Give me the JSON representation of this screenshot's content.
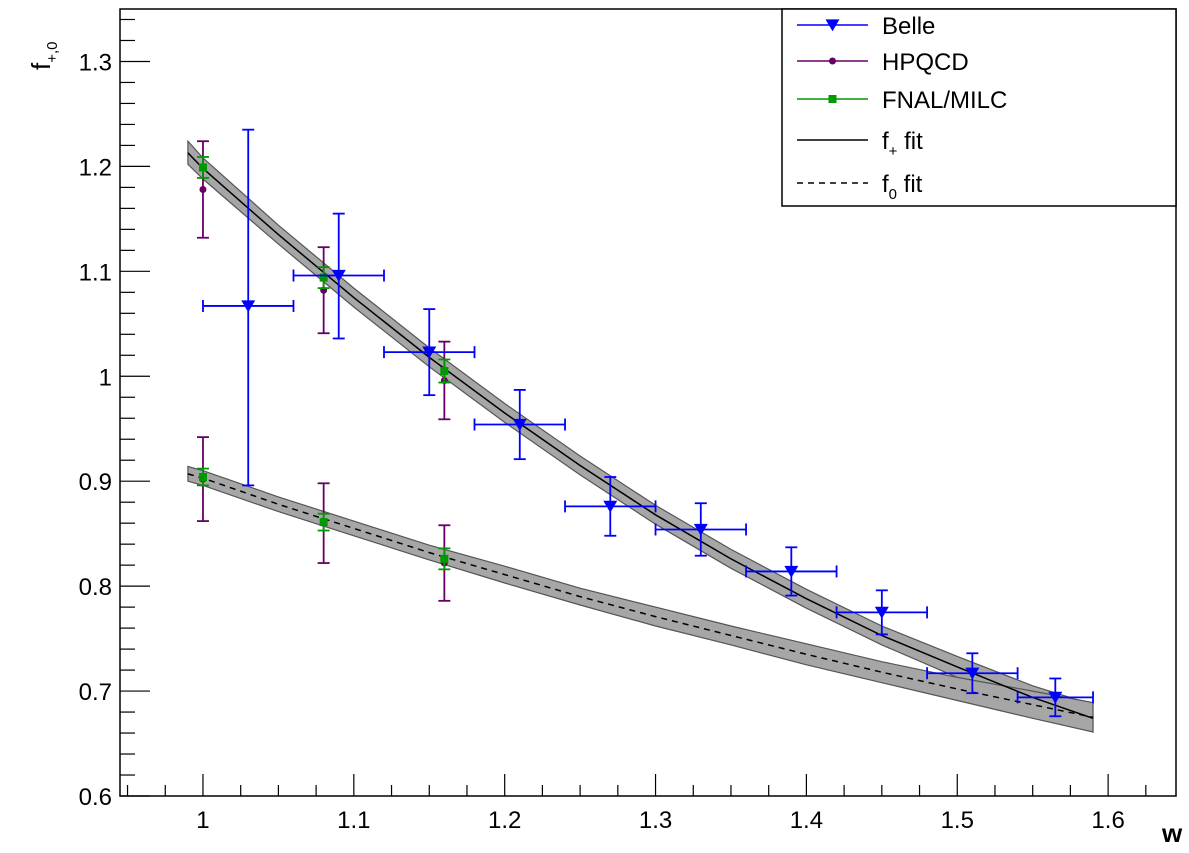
{
  "chart_data": {
    "type": "scatter",
    "xlabel": "w",
    "ylabel_main": "f",
    "ylabel_sub": "+,0",
    "xlim": [
      0.945,
      1.645
    ],
    "ylim": [
      0.6,
      1.35
    ],
    "x_ticks": [
      1,
      1.1,
      1.2,
      1.3,
      1.4,
      1.5,
      1.6
    ],
    "x_tick_labels": [
      "1",
      "1.1",
      "1.2",
      "1.3",
      "1.4",
      "1.5",
      "1.6"
    ],
    "y_ticks": [
      0.6,
      0.7,
      0.8,
      0.9,
      1.0,
      1.1,
      1.2,
      1.3
    ],
    "y_tick_labels": [
      "0.6",
      "0.7",
      "0.8",
      "0.9",
      "1",
      "1.1",
      "1.2",
      "1.3"
    ],
    "grid": false,
    "legend_position": "top-right",
    "legend": [
      {
        "key": "belle",
        "label": "Belle",
        "sub": "",
        "suffix": "",
        "style": "marker-triangle",
        "color": "#0000ff"
      },
      {
        "key": "hpqcd",
        "label": "HPQCD",
        "sub": "",
        "suffix": "",
        "style": "marker-circle",
        "color": "#660066"
      },
      {
        "key": "fnal",
        "label": "FNAL/MILC",
        "sub": "",
        "suffix": "",
        "style": "marker-square",
        "color": "#009900"
      },
      {
        "key": "fplus",
        "label": "f",
        "sub": "+",
        "suffix": " fit",
        "style": "line-solid",
        "color": "#000000"
      },
      {
        "key": "fzero",
        "label": "f",
        "sub": "0",
        "suffix": " fit",
        "style": "line-dashed",
        "color": "#000000"
      }
    ],
    "series": [
      {
        "name": "Belle",
        "color": "#0000ff",
        "marker": "triangle-down",
        "points": [
          {
            "x": 1.03,
            "y": 1.067,
            "xerr": 0.03,
            "yerr_lo": 0.171,
            "yerr_hi": 0.168
          },
          {
            "x": 1.09,
            "y": 1.096,
            "xerr": 0.03,
            "yerr_lo": 0.06,
            "yerr_hi": 0.059
          },
          {
            "x": 1.15,
            "y": 1.023,
            "xerr": 0.03,
            "yerr_lo": 0.041,
            "yerr_hi": 0.041
          },
          {
            "x": 1.21,
            "y": 0.954,
            "xerr": 0.03,
            "yerr_lo": 0.033,
            "yerr_hi": 0.033
          },
          {
            "x": 1.27,
            "y": 0.876,
            "xerr": 0.03,
            "yerr_lo": 0.028,
            "yerr_hi": 0.028
          },
          {
            "x": 1.33,
            "y": 0.854,
            "xerr": 0.03,
            "yerr_lo": 0.025,
            "yerr_hi": 0.025
          },
          {
            "x": 1.39,
            "y": 0.814,
            "xerr": 0.03,
            "yerr_lo": 0.023,
            "yerr_hi": 0.023
          },
          {
            "x": 1.45,
            "y": 0.775,
            "xerr": 0.03,
            "yerr_lo": 0.021,
            "yerr_hi": 0.021
          },
          {
            "x": 1.51,
            "y": 0.717,
            "xerr": 0.03,
            "yerr_lo": 0.019,
            "yerr_hi": 0.019
          },
          {
            "x": 1.565,
            "y": 0.694,
            "xerr": 0.025,
            "yerr_lo": 0.018,
            "yerr_hi": 0.018
          }
        ]
      },
      {
        "name": "HPQCD",
        "color": "#660066",
        "marker": "circle",
        "points": [
          {
            "x": 1.0,
            "y": 1.178,
            "yerr_lo": 0.046,
            "yerr_hi": 0.046
          },
          {
            "x": 1.08,
            "y": 1.082,
            "yerr_lo": 0.041,
            "yerr_hi": 0.041
          },
          {
            "x": 1.16,
            "y": 0.996,
            "yerr_lo": 0.037,
            "yerr_hi": 0.037
          },
          {
            "x": 1.0,
            "y": 0.902,
            "yerr_lo": 0.04,
            "yerr_hi": 0.04
          },
          {
            "x": 1.08,
            "y": 0.86,
            "yerr_lo": 0.038,
            "yerr_hi": 0.038
          },
          {
            "x": 1.16,
            "y": 0.822,
            "yerr_lo": 0.036,
            "yerr_hi": 0.036
          }
        ]
      },
      {
        "name": "FNAL/MILC",
        "color": "#009900",
        "marker": "square",
        "points": [
          {
            "x": 1.0,
            "y": 1.199,
            "yerr_lo": 0.01,
            "yerr_hi": 0.01
          },
          {
            "x": 1.08,
            "y": 1.094,
            "yerr_lo": 0.01,
            "yerr_hi": 0.01
          },
          {
            "x": 1.16,
            "y": 1.005,
            "yerr_lo": 0.011,
            "yerr_hi": 0.011
          },
          {
            "x": 1.0,
            "y": 0.904,
            "yerr_lo": 0.008,
            "yerr_hi": 0.008
          },
          {
            "x": 1.08,
            "y": 0.861,
            "yerr_lo": 0.008,
            "yerr_hi": 0.008
          },
          {
            "x": 1.16,
            "y": 0.826,
            "yerr_lo": 0.01,
            "yerr_hi": 0.01
          }
        ]
      }
    ],
    "fits": [
      {
        "name": "f+ fit",
        "style": "solid",
        "x": [
          0.99,
          1.0,
          1.05,
          1.1,
          1.15,
          1.2,
          1.25,
          1.3,
          1.35,
          1.4,
          1.45,
          1.5,
          1.55,
          1.59
        ],
        "y": [
          1.213,
          1.198,
          1.135,
          1.075,
          1.018,
          0.965,
          0.915,
          0.868,
          0.826,
          0.788,
          0.753,
          0.723,
          0.694,
          0.674
        ],
        "band_halfwidth": [
          0.011,
          0.01,
          0.009,
          0.009,
          0.009,
          0.009,
          0.009,
          0.009,
          0.009,
          0.009,
          0.009,
          0.01,
          0.011,
          0.013
        ]
      },
      {
        "name": "f0 fit",
        "style": "dashed",
        "x": [
          0.99,
          1.0,
          1.05,
          1.1,
          1.15,
          1.2,
          1.25,
          1.3,
          1.35,
          1.4,
          1.45,
          1.5,
          1.55,
          1.59
        ],
        "y": [
          0.907,
          0.903,
          0.878,
          0.855,
          0.832,
          0.811,
          0.79,
          0.771,
          0.753,
          0.735,
          0.718,
          0.702,
          0.687,
          0.675
        ],
        "band_halfwidth": [
          0.007,
          0.007,
          0.007,
          0.007,
          0.007,
          0.008,
          0.008,
          0.009,
          0.009,
          0.01,
          0.01,
          0.011,
          0.013,
          0.014
        ]
      }
    ]
  }
}
